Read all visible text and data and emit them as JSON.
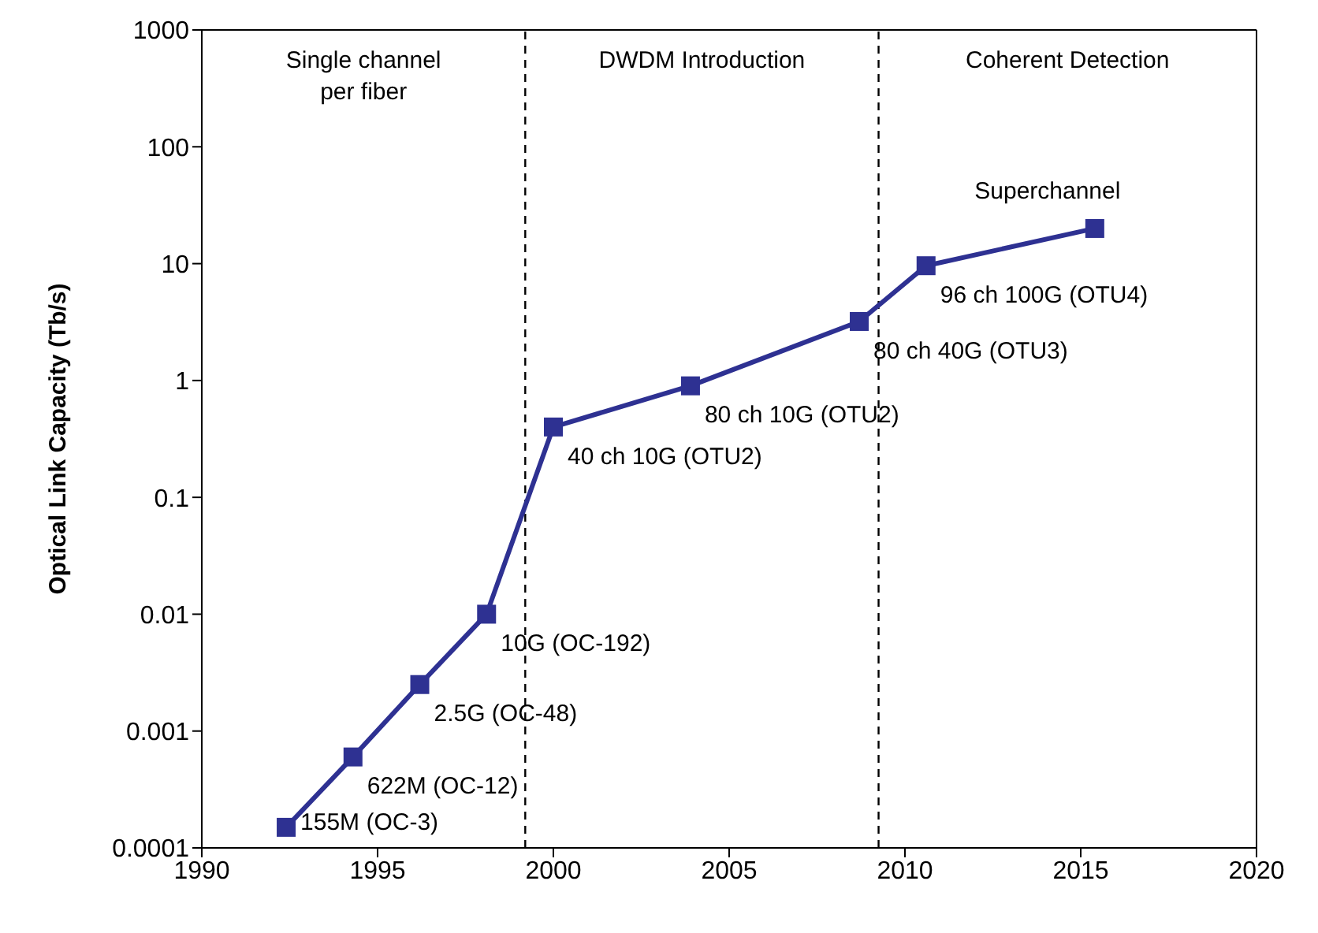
{
  "chart_data": {
    "type": "line",
    "ylabel": "Optical Link Capacity (Tb/s)",
    "x": [
      1992.4,
      1994.3,
      1996.2,
      1998.1,
      2000,
      2003.9,
      2008.7,
      2010.6,
      2015.4
    ],
    "series": [
      {
        "color": "#2e3192",
        "values": [
          0.00015,
          0.0006,
          0.0025,
          0.01,
          0.4,
          0.9,
          3.2,
          9.6,
          20
        ]
      }
    ],
    "xlim": [
      1990,
      2020
    ],
    "xticks": [
      1990,
      1995,
      2000,
      2005,
      2010,
      2015,
      2020
    ],
    "ylim": [
      0.0001,
      1000
    ],
    "yticks": [
      0.0001,
      0.001,
      0.01,
      0.1,
      1,
      10,
      100,
      1000
    ],
    "log": "y",
    "marker": "square",
    "line_style": "solid",
    "ref_lines": [
      {
        "axis": "x",
        "value": 1999.2,
        "line_style": "dashed",
        "color": "#000000"
      },
      {
        "axis": "x",
        "value": 2009.25,
        "line_style": "dashed",
        "color": "#000000"
      }
    ],
    "annotations": [
      {
        "text": "155M (OC-3)",
        "x": 1992.4,
        "y": 0.00015
      },
      {
        "text": "622M (OC-12)",
        "x": 1994.3,
        "y": 0.0006
      },
      {
        "text": "2.5G (OC-48)",
        "x": 1996.2,
        "y": 0.0025
      },
      {
        "text": "10G (OC-192)",
        "x": 1998.1,
        "y": 0.01
      },
      {
        "text": "40 ch 10G (OTU2)",
        "x": 2000,
        "y": 0.4
      },
      {
        "text": "80 ch 10G (OTU2)",
        "x": 2003.9,
        "y": 0.9
      },
      {
        "text": "80 ch 40G (OTU3)",
        "x": 2008.7,
        "y": 3.2
      },
      {
        "text": "96 ch 100G (OTU4)",
        "x": 2010.6,
        "y": 9.6
      },
      {
        "text": "Superchannel",
        "x": 2015.4,
        "y": 20
      },
      "Single channel per fiber",
      "DWDM Introduction",
      "Coherent Detection"
    ]
  }
}
